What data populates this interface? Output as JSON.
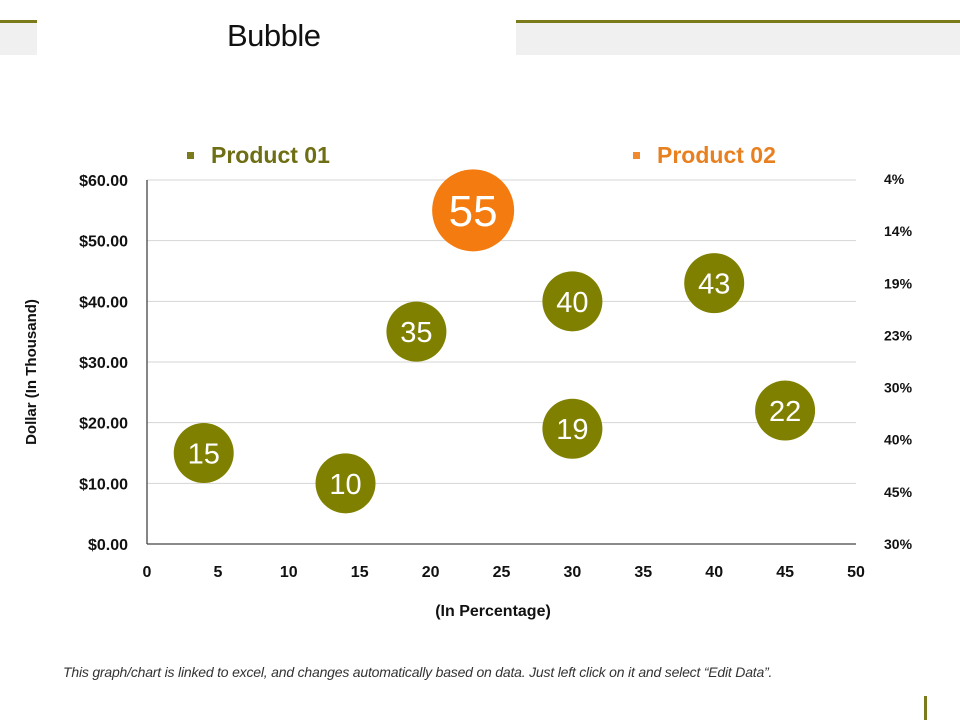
{
  "slide": {
    "title": "Bubble",
    "footnote": "This graph/chart is linked to excel, and changes automatically based on data. Just left click on it and select “Edit Data”.",
    "accent_color": "#7b7b1c"
  },
  "chart_data": {
    "type": "bubble",
    "title": "Bubble",
    "xlabel": "(In Percentage)",
    "ylabel": "Dollar  (In Thousand)",
    "xlim": [
      0,
      50
    ],
    "ylim": [
      0,
      60
    ],
    "x_ticks": [
      0,
      5,
      10,
      15,
      20,
      25,
      30,
      35,
      40,
      45,
      50
    ],
    "x_tick_labels": [
      "0",
      "5",
      "10",
      "15",
      "20",
      "25",
      "30",
      "35",
      "40",
      "45",
      "50"
    ],
    "y_ticks": [
      0,
      10,
      20,
      30,
      40,
      50,
      60
    ],
    "y_tick_labels": [
      "$0.00",
      "$10.00",
      "$20.00",
      "$30.00",
      "$40.00",
      "$50.00",
      "$60.00"
    ],
    "grid": "horizontal",
    "legend_position": "top",
    "right_labels": [
      "4%",
      "14%",
      "19%",
      "23%",
      "30%",
      "40%",
      "45%",
      "30%"
    ],
    "series": [
      {
        "name": "Product 01",
        "color": "#808000",
        "points": [
          {
            "x": 4,
            "y": 15,
            "size": 15,
            "label": "15"
          },
          {
            "x": 14,
            "y": 10,
            "size": 10,
            "label": "10"
          },
          {
            "x": 19,
            "y": 35,
            "size": 35,
            "label": "35"
          },
          {
            "x": 30,
            "y": 40,
            "size": 40,
            "label": "40"
          },
          {
            "x": 40,
            "y": 43,
            "size": 43,
            "label": "43"
          },
          {
            "x": 30,
            "y": 19,
            "size": 19,
            "label": "19"
          },
          {
            "x": 45,
            "y": 22,
            "size": 22,
            "label": "22"
          }
        ]
      },
      {
        "name": "Product 02",
        "color": "#f47b0f",
        "points": [
          {
            "x": 23,
            "y": 55,
            "size": 55,
            "label": "55"
          }
        ]
      }
    ]
  }
}
